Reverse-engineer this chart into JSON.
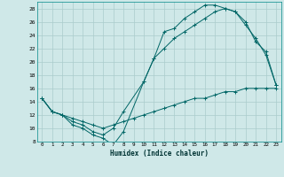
{
  "xlabel": "Humidex (Indice chaleur)",
  "background_color": "#cfe8e8",
  "grid_color": "#aacccc",
  "line_color": "#006666",
  "xlim": [
    -0.5,
    23.5
  ],
  "ylim": [
    8,
    29
  ],
  "xticks": [
    0,
    1,
    2,
    3,
    4,
    5,
    6,
    7,
    8,
    9,
    10,
    11,
    12,
    13,
    14,
    15,
    16,
    17,
    18,
    19,
    20,
    21,
    22,
    23
  ],
  "yticks": [
    8,
    10,
    12,
    14,
    16,
    18,
    20,
    22,
    24,
    26,
    28
  ],
  "line1_x": [
    0,
    1,
    2,
    3,
    4,
    5,
    6,
    7,
    8,
    10,
    11,
    12,
    13,
    14,
    15,
    16,
    17,
    18,
    19,
    20,
    21,
    22,
    23
  ],
  "line1_y": [
    14.5,
    12.5,
    12.0,
    10.5,
    10.0,
    9.0,
    8.5,
    7.5,
    9.5,
    17.0,
    20.5,
    24.5,
    25.0,
    26.5,
    27.5,
    28.5,
    28.5,
    28.0,
    27.5,
    25.5,
    23.5,
    21.0,
    16.5
  ],
  "line2_x": [
    0,
    1,
    2,
    3,
    4,
    5,
    6,
    7,
    8,
    10,
    11,
    12,
    13,
    14,
    15,
    16,
    17,
    18,
    19,
    20,
    21,
    22,
    23
  ],
  "line2_y": [
    14.5,
    12.5,
    12.0,
    11.0,
    10.5,
    9.5,
    9.0,
    10.0,
    12.5,
    17.0,
    20.5,
    22.0,
    23.5,
    24.5,
    25.5,
    26.5,
    27.5,
    28.0,
    27.5,
    26.0,
    23.0,
    21.5,
    16.5
  ],
  "line3_x": [
    0,
    1,
    2,
    3,
    4,
    5,
    6,
    7,
    8,
    9,
    10,
    11,
    12,
    13,
    14,
    15,
    16,
    17,
    18,
    19,
    20,
    21,
    22,
    23
  ],
  "line3_y": [
    14.5,
    12.5,
    12.0,
    11.5,
    11.0,
    10.5,
    10.0,
    10.5,
    11.0,
    11.5,
    12.0,
    12.5,
    13.0,
    13.5,
    14.0,
    14.5,
    14.5,
    15.0,
    15.5,
    15.5,
    16.0,
    16.0,
    16.0,
    16.0
  ]
}
